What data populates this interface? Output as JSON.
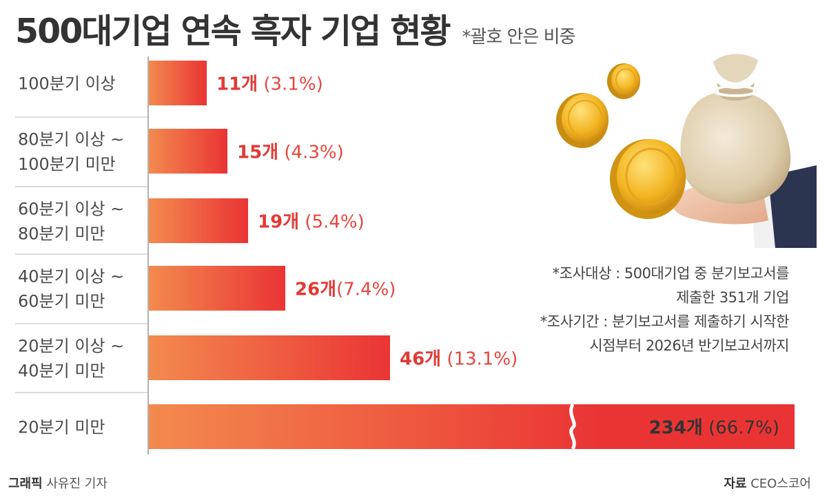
{
  "header": {
    "title": "500대기업 연속 흑자 기업 현황",
    "note": "*괄호 안은 비중"
  },
  "colors": {
    "bar_start": "#f38a4e",
    "bar_end": "#ea3434",
    "value_count": "#e23a36",
    "value_pct": "#e8453c",
    "last_value": "#333333"
  },
  "chart_data": {
    "type": "bar",
    "orientation": "horizontal",
    "categories": [
      [
        "100분기 이상"
      ],
      [
        "80분기 이상 ~",
        "100분기 미만"
      ],
      [
        "60분기 이상 ~",
        "80분기 미만"
      ],
      [
        "40분기 이상 ~",
        "60분기 미만"
      ],
      [
        "20분기 이상 ~",
        "40분기 미만"
      ],
      [
        "20분기 미만"
      ]
    ],
    "values": [
      11,
      15,
      19,
      26,
      46,
      234
    ],
    "percents": [
      3.1,
      4.3,
      5.4,
      7.4,
      13.1,
      66.7
    ],
    "labels": [
      {
        "count": "11개",
        "pct": " (3.1%)"
      },
      {
        "count": "15개",
        "pct": " (4.3%)"
      },
      {
        "count": "19개",
        "pct": " (5.4%)"
      },
      {
        "count": "26개",
        "pct": "(7.4%)"
      },
      {
        "count": "46개",
        "pct": " (13.1%)"
      },
      {
        "count": "234개",
        "pct": " (66.7%)"
      }
    ],
    "axis_break_on_last_bar": true
  },
  "notes": [
    "*조사대상 : 500대기업 중 분기보고서를",
    "제출한 351개 기업",
    "*조사기간 : 분기보고서를 제출하기 시작한",
    "시점부터 2026년 반기보고서까지"
  ],
  "footer": {
    "graphic_label": "그래픽",
    "graphic_name": "사유진 기자",
    "source_label": "자료",
    "source_name": "CEO스코어"
  }
}
